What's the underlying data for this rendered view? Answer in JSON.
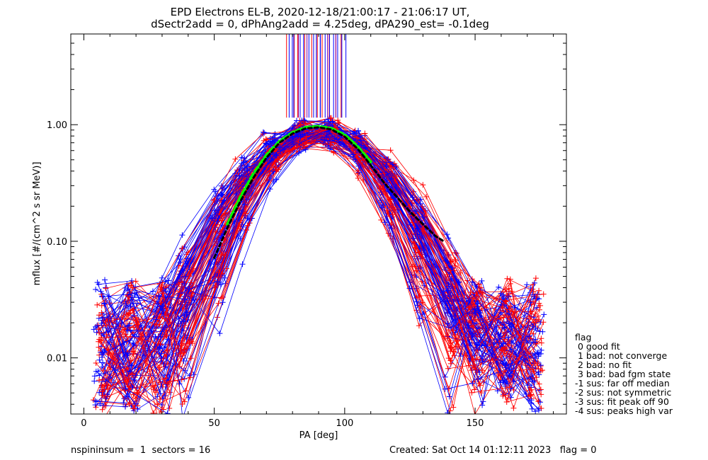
{
  "figure": {
    "title_line1": "EPD Electrons EL-B, 2020-12-18/21:00:17 - 21:06:17 UT,",
    "title_line2": "dSectr2add = 0, dPhAng2add = 4.25deg, dPA290_est=  -0.1deg",
    "footer_left": "nspininsum =  1  sectors = 16",
    "footer_right": "Created: Sat Oct 14 01:12:11 2023   flag = 0",
    "colors": {
      "red": "#ff0000",
      "blue": "#0000ff",
      "green": "#00ff00",
      "black": "#000000"
    }
  },
  "legend": {
    "title": "flag",
    "items": [
      " 0 good fit",
      " 1 bad: not converge",
      " 2 bad: no fit",
      " 3 bad: bad fgm state",
      "-1 sus: far off median",
      "-2 sus: not symmetric",
      "-3 sus: fit peak off 90",
      "-4 sus: peaks high var"
    ]
  },
  "chart_data": {
    "type": "line",
    "xlabel": "PA [deg]",
    "ylabel": "mflux [#/(cm^2 s sr MeV)]",
    "xlim": [
      -5,
      185
    ],
    "ylim": [
      0.0033,
      6.0
    ],
    "yscale": "log",
    "xticks": [
      0,
      50,
      100,
      150
    ],
    "xtick_labels": [
      "0",
      "50",
      "100",
      "150"
    ],
    "yticks": [
      0.01,
      0.1,
      1.0
    ],
    "ytick_labels": [
      "0.01",
      "0.10",
      "1.00"
    ],
    "grid": false,
    "spectra_colors": [
      "red",
      "blue"
    ],
    "spectra_count": 120,
    "spectrum_shape": {
      "peak_pa": 90,
      "peak_flux": 0.9,
      "center_flux": 0.009,
      "tail_flux": 0.012,
      "low_pa": 7,
      "high_pa": 173
    },
    "vertical_markers": {
      "x_range": [
        78,
        100
      ],
      "y_from": 1.15,
      "y_to": 6.0,
      "count": 30
    },
    "fit_curves": [
      {
        "color": "green",
        "style": "dashed",
        "x": [
          55,
          60,
          65,
          70,
          75,
          80,
          85,
          90,
          95,
          100,
          105,
          110
        ],
        "y": [
          0.14,
          0.24,
          0.38,
          0.55,
          0.72,
          0.86,
          0.95,
          0.97,
          0.93,
          0.82,
          0.65,
          0.48
        ]
      },
      {
        "color": "black",
        "style": "dashed",
        "x": [
          50,
          55,
          60,
          65,
          70,
          75,
          80,
          85,
          90,
          95,
          100,
          105,
          110,
          115,
          120,
          125,
          130,
          135,
          138
        ],
        "y": [
          0.072,
          0.13,
          0.22,
          0.35,
          0.52,
          0.7,
          0.84,
          0.93,
          0.95,
          0.91,
          0.79,
          0.62,
          0.45,
          0.32,
          0.24,
          0.18,
          0.14,
          0.11,
          0.1
        ]
      }
    ]
  }
}
